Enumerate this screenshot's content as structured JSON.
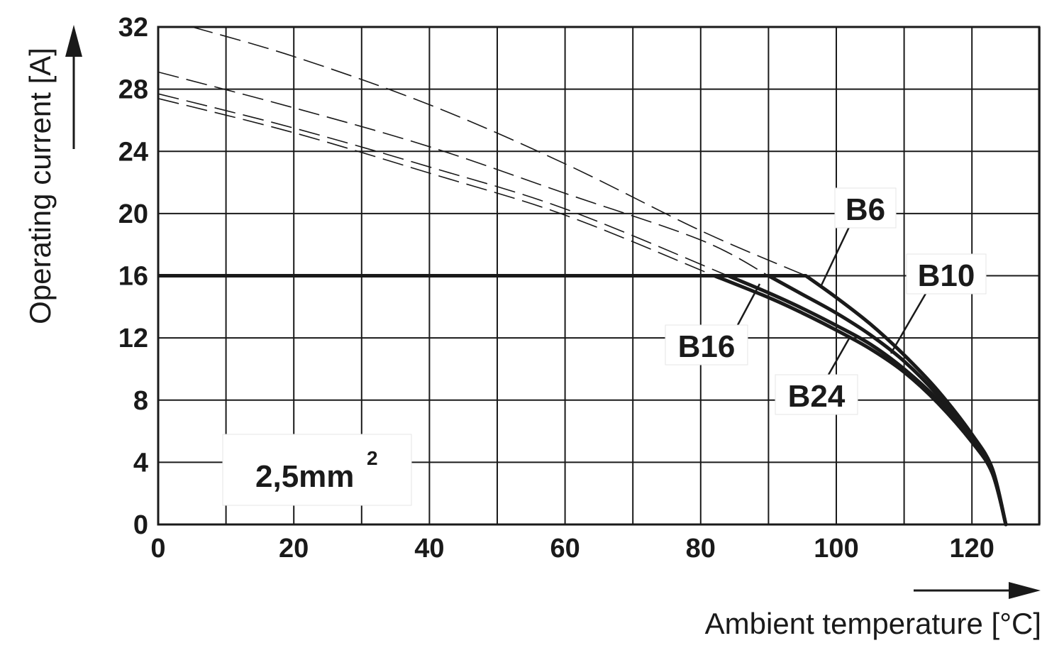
{
  "chart_data": {
    "type": "line",
    "xlabel": "Ambient temperature [°C]",
    "ylabel": "Operating current [A]",
    "xlim": [
      0,
      130
    ],
    "ylim": [
      0,
      32
    ],
    "x_ticks": [
      0,
      20,
      40,
      60,
      80,
      100,
      120
    ],
    "y_ticks": [
      0,
      4,
      8,
      12,
      16,
      20,
      24,
      28,
      32
    ],
    "grid": true,
    "conductor_label": "2,5mm",
    "conductor_sup": "2",
    "limit_current": 16,
    "series": [
      {
        "name": "B6",
        "solid": [
          [
            95.5,
            16
          ],
          [
            100,
            14.6
          ],
          [
            105,
            12.9
          ],
          [
            110,
            10.9
          ],
          [
            115,
            8.6
          ],
          [
            120,
            5.8
          ],
          [
            123,
            3.6
          ],
          [
            125,
            0
          ]
        ],
        "dashed": [
          [
            5,
            32
          ],
          [
            20,
            30.1
          ],
          [
            40,
            27.0
          ],
          [
            60,
            23.2
          ],
          [
            80,
            18.9
          ],
          [
            95.5,
            16
          ]
        ]
      },
      {
        "name": "B10",
        "solid": [
          [
            90,
            16
          ],
          [
            95,
            14.8
          ],
          [
            100,
            13.6
          ],
          [
            105,
            12.2
          ],
          [
            110,
            10.5
          ],
          [
            115,
            8.3
          ],
          [
            120,
            5.6
          ],
          [
            123,
            3.5
          ],
          [
            125,
            0
          ]
        ],
        "dashed": [
          [
            0,
            29.1
          ],
          [
            20,
            26.8
          ],
          [
            40,
            24.3
          ],
          [
            60,
            21.3
          ],
          [
            80,
            18.3
          ],
          [
            90,
            16
          ]
        ]
      },
      {
        "name": "B16",
        "solid": [
          [
            84,
            16
          ],
          [
            90,
            14.9
          ],
          [
            95,
            13.9
          ],
          [
            100,
            12.8
          ],
          [
            105,
            11.6
          ],
          [
            110,
            10.0
          ],
          [
            115,
            8.0
          ],
          [
            120,
            5.4
          ],
          [
            123,
            3.4
          ],
          [
            125,
            0
          ]
        ],
        "dashed": [
          [
            0,
            27.7
          ],
          [
            20,
            25.5
          ],
          [
            40,
            23.0
          ],
          [
            60,
            20.3
          ],
          [
            84,
            16
          ]
        ]
      },
      {
        "name": "B24",
        "solid": [
          [
            82,
            16
          ],
          [
            90,
            14.6
          ],
          [
            95,
            13.6
          ],
          [
            100,
            12.5
          ],
          [
            105,
            11.3
          ],
          [
            110,
            9.8
          ],
          [
            115,
            7.8
          ],
          [
            120,
            5.3
          ],
          [
            123,
            3.3
          ],
          [
            125,
            0
          ]
        ],
        "dashed": [
          [
            0,
            27.4
          ],
          [
            20,
            25.2
          ],
          [
            40,
            22.6
          ],
          [
            60,
            19.9
          ],
          [
            82,
            16
          ]
        ]
      }
    ]
  }
}
